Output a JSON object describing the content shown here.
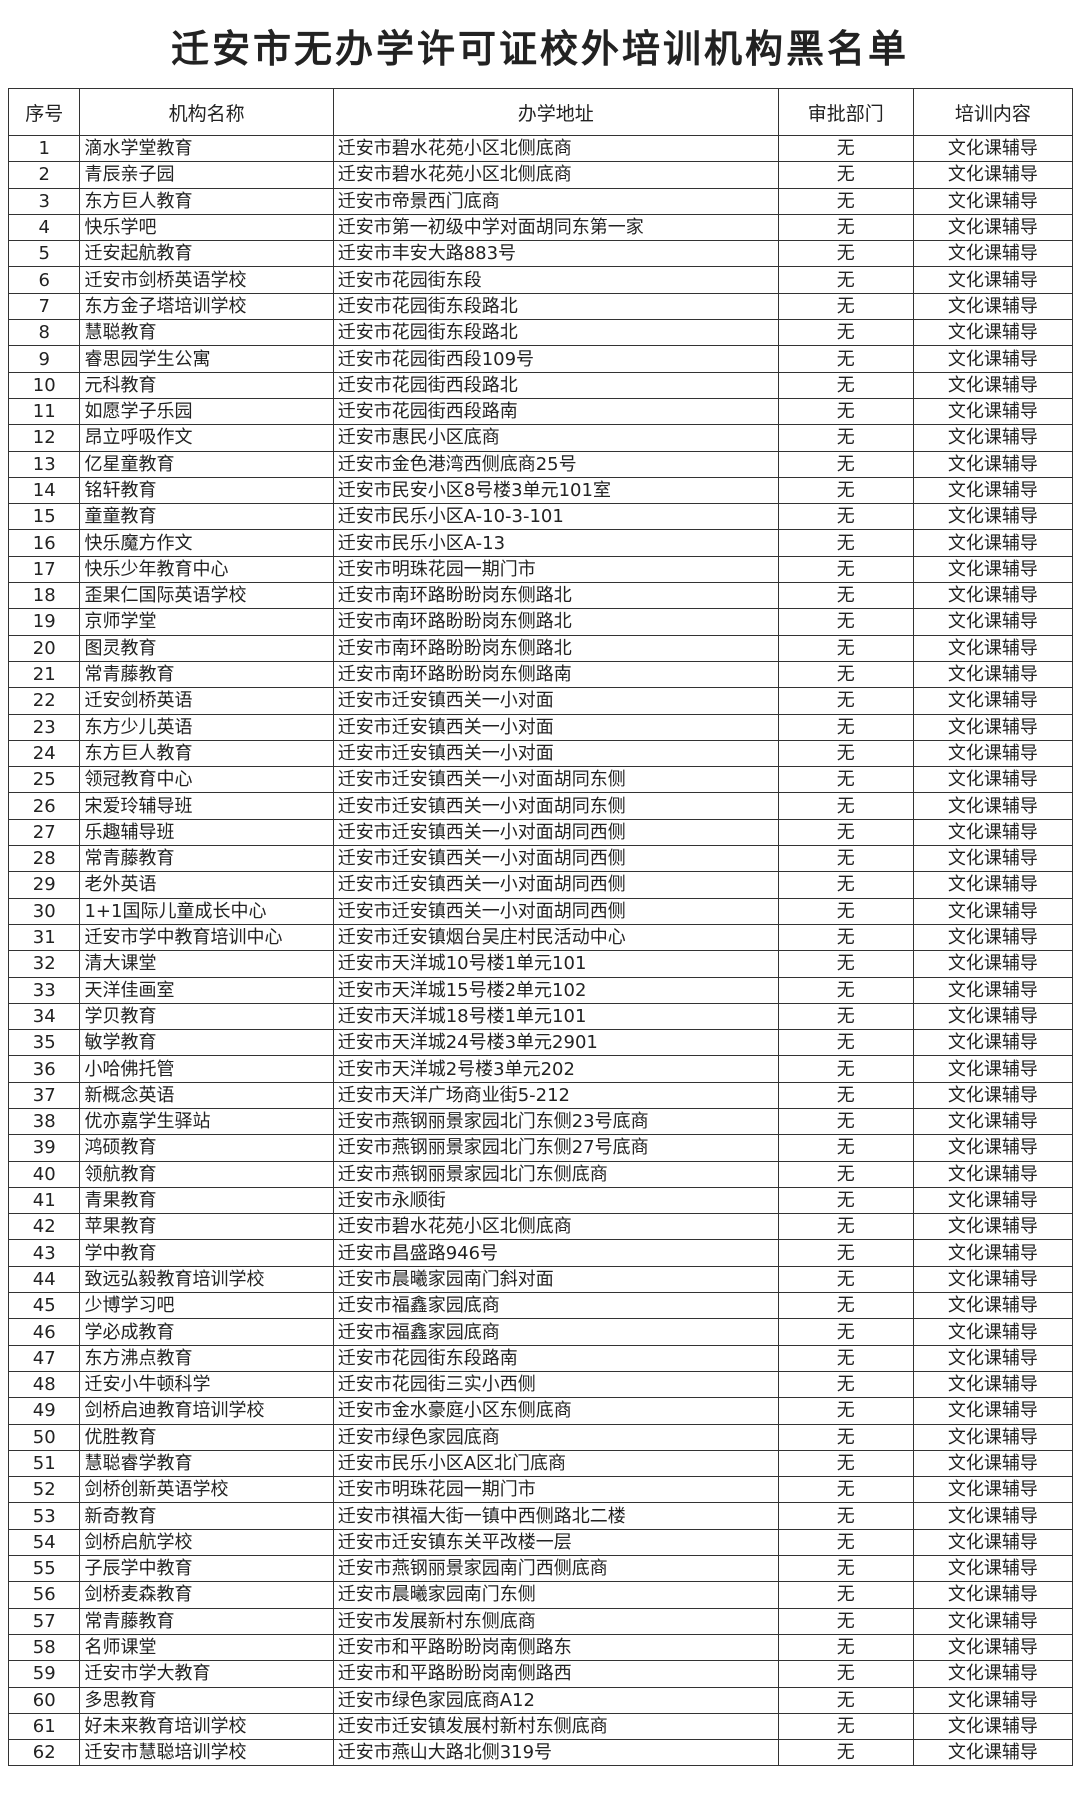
{
  "title": "迁安市无办学许可证校外培训机构黑名单",
  "columns": [
    "序号",
    "机构名称",
    "办学地址",
    "审批部门",
    "培训内容"
  ],
  "rows": [
    [
      "1",
      "滴水学堂教育",
      "迁安市碧水花苑小区北侧底商",
      "无",
      "文化课辅导"
    ],
    [
      "2",
      "青辰亲子园",
      "迁安市碧水花苑小区北侧底商",
      "无",
      "文化课辅导"
    ],
    [
      "3",
      "东方巨人教育",
      "迁安市帝景西门底商",
      "无",
      "文化课辅导"
    ],
    [
      "4",
      "快乐学吧",
      "迁安市第一初级中学对面胡同东第一家",
      "无",
      "文化课辅导"
    ],
    [
      "5",
      "迁安起航教育",
      "迁安市丰安大路883号",
      "无",
      "文化课辅导"
    ],
    [
      "6",
      "迁安市剑桥英语学校",
      "迁安市花园街东段",
      "无",
      "文化课辅导"
    ],
    [
      "7",
      "东方金子塔培训学校",
      "迁安市花园街东段路北",
      "无",
      "文化课辅导"
    ],
    [
      "8",
      "慧聪教育",
      "迁安市花园街东段路北",
      "无",
      "文化课辅导"
    ],
    [
      "9",
      "睿思园学生公寓",
      "迁安市花园街西段109号",
      "无",
      "文化课辅导"
    ],
    [
      "10",
      "元科教育",
      "迁安市花园街西段路北",
      "无",
      "文化课辅导"
    ],
    [
      "11",
      "如愿学子乐园",
      "迁安市花园街西段路南",
      "无",
      "文化课辅导"
    ],
    [
      "12",
      "昂立呼吸作文",
      "迁安市惠民小区底商",
      "无",
      "文化课辅导"
    ],
    [
      "13",
      "亿星童教育",
      "迁安市金色港湾西侧底商25号",
      "无",
      "文化课辅导"
    ],
    [
      "14",
      "铭轩教育",
      "迁安市民安小区8号楼3单元101室",
      "无",
      "文化课辅导"
    ],
    [
      "15",
      "童童教育",
      "迁安市民乐小区A-10-3-101",
      "无",
      "文化课辅导"
    ],
    [
      "16",
      "快乐魔方作文",
      "迁安市民乐小区A-13",
      "无",
      "文化课辅导"
    ],
    [
      "17",
      "快乐少年教育中心",
      "迁安市明珠花园一期门市",
      "无",
      "文化课辅导"
    ],
    [
      "18",
      "歪果仁国际英语学校",
      "迁安市南环路盼盼岗东侧路北",
      "无",
      "文化课辅导"
    ],
    [
      "19",
      "京师学堂",
      "迁安市南环路盼盼岗东侧路北",
      "无",
      "文化课辅导"
    ],
    [
      "20",
      "图灵教育",
      "迁安市南环路盼盼岗东侧路北",
      "无",
      "文化课辅导"
    ],
    [
      "21",
      "常青藤教育",
      "迁安市南环路盼盼岗东侧路南",
      "无",
      "文化课辅导"
    ],
    [
      "22",
      "迁安剑桥英语",
      "迁安市迁安镇西关一小对面",
      "无",
      "文化课辅导"
    ],
    [
      "23",
      "东方少儿英语",
      "迁安市迁安镇西关一小对面",
      "无",
      "文化课辅导"
    ],
    [
      "24",
      "东方巨人教育",
      "迁安市迁安镇西关一小对面",
      "无",
      "文化课辅导"
    ],
    [
      "25",
      "领冠教育中心",
      "迁安市迁安镇西关一小对面胡同东侧",
      "无",
      "文化课辅导"
    ],
    [
      "26",
      "宋爱玲辅导班",
      "迁安市迁安镇西关一小对面胡同东侧",
      "无",
      "文化课辅导"
    ],
    [
      "27",
      "乐趣辅导班",
      "迁安市迁安镇西关一小对面胡同西侧",
      "无",
      "文化课辅导"
    ],
    [
      "28",
      "常青藤教育",
      "迁安市迁安镇西关一小对面胡同西侧",
      "无",
      "文化课辅导"
    ],
    [
      "29",
      "老外英语",
      "迁安市迁安镇西关一小对面胡同西侧",
      "无",
      "文化课辅导"
    ],
    [
      "30",
      "1+1国际儿童成长中心",
      "迁安市迁安镇西关一小对面胡同西侧",
      "无",
      "文化课辅导"
    ],
    [
      "31",
      "迁安市学中教育培训中心",
      "迁安市迁安镇烟台吴庄村民活动中心",
      "无",
      "文化课辅导"
    ],
    [
      "32",
      "清大课堂",
      "迁安市天洋城10号楼1单元101",
      "无",
      "文化课辅导"
    ],
    [
      "33",
      "天洋佳画室",
      "迁安市天洋城15号楼2单元102",
      "无",
      "文化课辅导"
    ],
    [
      "34",
      "学贝教育",
      "迁安市天洋城18号楼1单元101",
      "无",
      "文化课辅导"
    ],
    [
      "35",
      "敏学教育",
      "迁安市天洋城24号楼3单元2901",
      "无",
      "文化课辅导"
    ],
    [
      "36",
      "小哈佛托管",
      "迁安市天洋城2号楼3单元202",
      "无",
      "文化课辅导"
    ],
    [
      "37",
      "新概念英语",
      "迁安市天洋广场商业街5-212",
      "无",
      "文化课辅导"
    ],
    [
      "38",
      "优亦嘉学生驿站",
      "迁安市燕钢丽景家园北门东侧23号底商",
      "无",
      "文化课辅导"
    ],
    [
      "39",
      "鸿硕教育",
      "迁安市燕钢丽景家园北门东侧27号底商",
      "无",
      "文化课辅导"
    ],
    [
      "40",
      "领航教育",
      "迁安市燕钢丽景家园北门东侧底商",
      "无",
      "文化课辅导"
    ],
    [
      "41",
      "青果教育",
      "迁安市永顺街",
      "无",
      "文化课辅导"
    ],
    [
      "42",
      "苹果教育",
      "迁安市碧水花苑小区北侧底商",
      "无",
      "文化课辅导"
    ],
    [
      "43",
      "学中教育",
      "迁安市昌盛路946号",
      "无",
      "文化课辅导"
    ],
    [
      "44",
      "致远弘毅教育培训学校",
      "迁安市晨曦家园南门斜对面",
      "无",
      "文化课辅导"
    ],
    [
      "45",
      "少博学习吧",
      "迁安市福鑫家园底商",
      "无",
      "文化课辅导"
    ],
    [
      "46",
      "学必成教育",
      "迁安市福鑫家园底商",
      "无",
      "文化课辅导"
    ],
    [
      "47",
      "东方沸点教育",
      "迁安市花园街东段路南",
      "无",
      "文化课辅导"
    ],
    [
      "48",
      "迁安小牛顿科学",
      "迁安市花园街三实小西侧",
      "无",
      "文化课辅导"
    ],
    [
      "49",
      "剑桥启迪教育培训学校",
      "迁安市金水豪庭小区东侧底商",
      "无",
      "文化课辅导"
    ],
    [
      "50",
      "优胜教育",
      "迁安市绿色家园底商",
      "无",
      "文化课辅导"
    ],
    [
      "51",
      "慧聪睿学教育",
      "迁安市民乐小区A区北门底商",
      "无",
      "文化课辅导"
    ],
    [
      "52",
      "剑桥创新英语学校",
      "迁安市明珠花园一期门市",
      "无",
      "文化课辅导"
    ],
    [
      "53",
      "新奇教育",
      "迁安市祺福大街一镇中西侧路北二楼",
      "无",
      "文化课辅导"
    ],
    [
      "54",
      "剑桥启航学校",
      "迁安市迁安镇东关平改楼一层",
      "无",
      "文化课辅导"
    ],
    [
      "55",
      "子辰学中教育",
      "迁安市燕钢丽景家园南门西侧底商",
      "无",
      "文化课辅导"
    ],
    [
      "56",
      "剑桥麦森教育",
      "迁安市晨曦家园南门东侧",
      "无",
      "文化课辅导"
    ],
    [
      "57",
      "常青藤教育",
      "迁安市发展新村东侧底商",
      "无",
      "文化课辅导"
    ],
    [
      "58",
      "名师课堂",
      "迁安市和平路盼盼岗南侧路东",
      "无",
      "文化课辅导"
    ],
    [
      "59",
      "迁安市学大教育",
      "迁安市和平路盼盼岗南侧路西",
      "无",
      "文化课辅导"
    ],
    [
      "60",
      "多思教育",
      "迁安市绿色家园底商A12",
      "无",
      "文化课辅导"
    ],
    [
      "61",
      "好未来教育培训学校",
      "迁安市迁安镇发展村新村东侧底商",
      "无",
      "文化课辅导"
    ],
    [
      "62",
      "迁安市慧聪培训学校",
      "迁安市燕山大路北侧319号",
      "无",
      "文化课辅导"
    ]
  ]
}
